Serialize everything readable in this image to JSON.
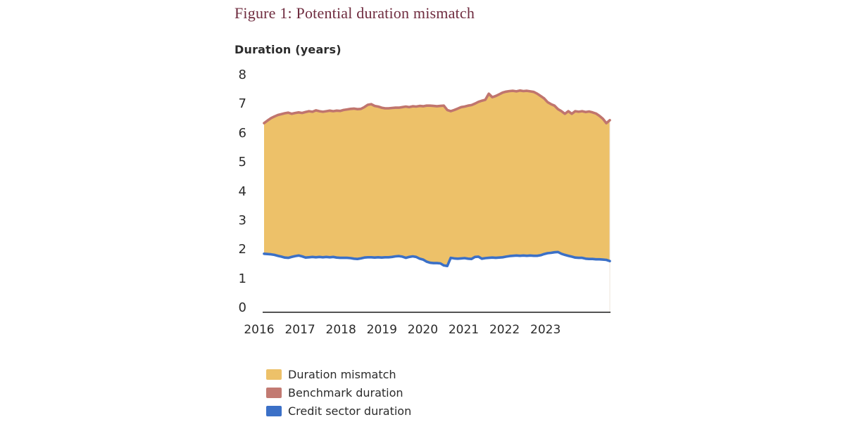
{
  "figure": {
    "title": "Figure 1: Potential duration mismatch",
    "axis_title": "Duration (years)"
  },
  "legend": [
    {
      "label": "Duration mismatch",
      "color": "#EDC169",
      "kind": "area"
    },
    {
      "label": "Benchmark duration",
      "color": "#C27A72",
      "kind": "line"
    },
    {
      "label": "Credit sector duration",
      "color": "#3B70C7",
      "kind": "line"
    }
  ],
  "colors": {
    "area_fill": "#EDC169",
    "benchmark_line": "#C0756E",
    "credit_line": "#3B70C7",
    "axis_line": "#1a1a1a",
    "title_text": "#6f2c3f",
    "body_text": "#2b2b2b",
    "plot_edge": "#ece4db"
  },
  "chart_data": {
    "type": "area",
    "title": "Figure 1: Potential duration mismatch",
    "xlabel": "",
    "ylabel": "Duration (years)",
    "ylim": [
      0,
      8
    ],
    "ytick_labels": [
      "0",
      "1",
      "2",
      "3",
      "4",
      "5",
      "6",
      "7",
      "8"
    ],
    "xtick_labels": [
      "2016",
      "2017",
      "2018",
      "2019",
      "2020",
      "2021",
      "2022",
      "2023"
    ],
    "grid": false,
    "legend_position": "bottom-left",
    "frequency": "monthly",
    "x_range_years": [
      2016.0,
      2024.33
    ],
    "area_between": "Duration mismatch = area between Benchmark duration and Credit sector duration",
    "series": [
      {
        "name": "Benchmark duration",
        "color": "#C0756E",
        "values": [
          6.35,
          6.44,
          6.52,
          6.58,
          6.63,
          6.66,
          6.69,
          6.71,
          6.67,
          6.7,
          6.72,
          6.7,
          6.73,
          6.76,
          6.74,
          6.79,
          6.76,
          6.74,
          6.76,
          6.78,
          6.76,
          6.78,
          6.77,
          6.8,
          6.82,
          6.84,
          6.85,
          6.83,
          6.84,
          6.9,
          6.98,
          7.0,
          6.94,
          6.92,
          6.88,
          6.86,
          6.86,
          6.87,
          6.88,
          6.88,
          6.9,
          6.92,
          6.9,
          6.93,
          6.92,
          6.94,
          6.93,
          6.95,
          6.95,
          6.94,
          6.93,
          6.94,
          6.95,
          6.8,
          6.76,
          6.8,
          6.85,
          6.9,
          6.92,
          6.95,
          6.97,
          7.02,
          7.08,
          7.12,
          7.15,
          7.36,
          7.24,
          7.28,
          7.34,
          7.4,
          7.43,
          7.45,
          7.46,
          7.44,
          7.47,
          7.45,
          7.46,
          7.44,
          7.42,
          7.36,
          7.28,
          7.2,
          7.07,
          7.0,
          6.95,
          6.83,
          6.76,
          6.67,
          6.76,
          6.67,
          6.76,
          6.74,
          6.76,
          6.73,
          6.75,
          6.72,
          6.68,
          6.6,
          6.5,
          6.35,
          6.45
        ]
      },
      {
        "name": "Credit sector duration",
        "color": "#3B70C7",
        "values": [
          1.87,
          1.86,
          1.85,
          1.83,
          1.8,
          1.77,
          1.74,
          1.73,
          1.76,
          1.79,
          1.81,
          1.78,
          1.74,
          1.75,
          1.76,
          1.75,
          1.76,
          1.75,
          1.76,
          1.75,
          1.76,
          1.74,
          1.73,
          1.73,
          1.73,
          1.72,
          1.7,
          1.69,
          1.71,
          1.74,
          1.75,
          1.75,
          1.74,
          1.75,
          1.74,
          1.75,
          1.75,
          1.76,
          1.78,
          1.79,
          1.77,
          1.73,
          1.76,
          1.78,
          1.76,
          1.7,
          1.67,
          1.6,
          1.56,
          1.55,
          1.55,
          1.54,
          1.47,
          1.45,
          1.73,
          1.71,
          1.7,
          1.71,
          1.72,
          1.7,
          1.69,
          1.76,
          1.77,
          1.7,
          1.72,
          1.73,
          1.74,
          1.73,
          1.74,
          1.75,
          1.77,
          1.79,
          1.8,
          1.81,
          1.8,
          1.81,
          1.8,
          1.81,
          1.8,
          1.8,
          1.82,
          1.86,
          1.89,
          1.9,
          1.92,
          1.93,
          1.87,
          1.83,
          1.8,
          1.77,
          1.74,
          1.73,
          1.73,
          1.7,
          1.69,
          1.69,
          1.68,
          1.68,
          1.67,
          1.66,
          1.62
        ]
      }
    ]
  }
}
